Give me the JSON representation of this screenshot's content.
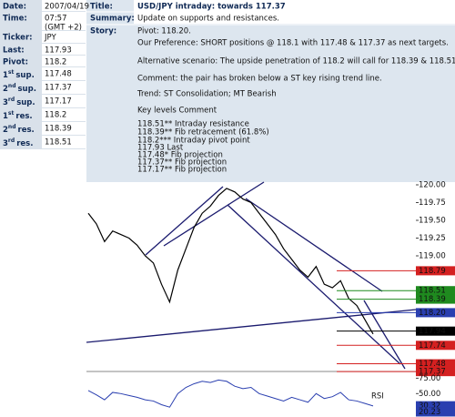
{
  "sidebar": {
    "rows": [
      {
        "label": "Date:",
        "value": "2007/04/19"
      },
      {
        "label": "Time:",
        "value": "07:57",
        "value2": "(GMT +2)"
      },
      {
        "label": "Ticker:",
        "value": "JPY"
      },
      {
        "label": "Last:",
        "value": "117.93"
      },
      {
        "label": "Pivot:",
        "value": "118.2"
      },
      {
        "num": "1",
        "sup": "st",
        "label": "sup.",
        "value": "117.48"
      },
      {
        "num": "2",
        "sup": "nd",
        "label": "sup.",
        "value": "117.37"
      },
      {
        "num": "3",
        "sup": "rd",
        "label": "sup.",
        "value": "117.17"
      },
      {
        "num": "1",
        "sup": "st",
        "label": "res.",
        "value": "118.2"
      },
      {
        "num": "2",
        "sup": "nd",
        "label": "res.",
        "value": "118.39"
      },
      {
        "num": "3",
        "sup": "rd",
        "label": "res.",
        "value": "118.51"
      }
    ]
  },
  "header": {
    "title_label": "Title:",
    "title": "USD/JPY intraday: towards 117.37",
    "summary_label": "Summary:",
    "summary": "Update on supports and resistances.",
    "story_label": "Story:",
    "story": [
      "Pivot: 118.20.",
      "Our Preference: SHORT positions @ 118.1 with 117.48 & 117.37 as next targets.",
      "Alternative scenario: The upside penetration of 118.2 will call for 118.39 & 118.51.",
      "Comment: the pair has broken below a ST key rising trend line.",
      "Trend: ST Consolidation; MT Bearish",
      "Key levels Comment",
      "118.51** Intraday resistance",
      "118.39** Fib retracement (61.8%)",
      "118.2*** Intraday pivot point",
      "117.93 Last",
      "117.48* Fib projection",
      "117.37** Fib projection",
      "117.17** Fib projection"
    ]
  },
  "chart_data": {
    "type": "line",
    "values": [
      119.6,
      119.45,
      119.2,
      119.35,
      119.3,
      119.25,
      119.15,
      119.0,
      118.9,
      118.6,
      118.35,
      118.8,
      119.1,
      119.4,
      119.6,
      119.7,
      119.85,
      119.95,
      119.9,
      119.8,
      119.75,
      119.6,
      119.45,
      119.3,
      119.1,
      118.95,
      118.8,
      118.7,
      118.85,
      118.6,
      118.55,
      118.65,
      118.4,
      118.3,
      118.1,
      117.9
    ],
    "color": "#000000",
    "ylim": [
      117.0,
      120.2
    ],
    "yticks": [
      {
        "value": 120,
        "label": "120.00"
      },
      {
        "value": 119.75,
        "label": "119.75"
      },
      {
        "value": 119.5,
        "label": "119.50"
      },
      {
        "value": 119.25,
        "label": "119.25"
      },
      {
        "value": 119,
        "label": "119.00"
      }
    ],
    "price_tags": [
      {
        "value": 118.79,
        "label": "118.79",
        "color": "#d42020"
      },
      {
        "value": 118.51,
        "label": "118.51",
        "color": "#1f8a1f"
      },
      {
        "value": 118.39,
        "label": "118.39",
        "color": "#1f8a1f"
      },
      {
        "value": 118.2,
        "label": "118.20",
        "color": "#2a3fb0"
      },
      {
        "value": 117.94,
        "label": "117.94",
        "color": "#000000"
      },
      {
        "value": 117.74,
        "label": "117.74",
        "color": "#d42020"
      },
      {
        "value": 117.48,
        "label": "117.48",
        "color": "#d42020"
      },
      {
        "value": 117.37,
        "label": "117.37",
        "color": "#d42020"
      }
    ],
    "rsi": {
      "label": "RSI",
      "values": [
        55,
        48,
        40,
        52,
        50,
        47,
        44,
        40,
        38,
        32,
        28,
        50,
        60,
        66,
        70,
        68,
        72,
        70,
        62,
        58,
        60,
        50,
        46,
        42,
        38,
        44,
        40,
        36,
        50,
        42,
        45,
        52,
        40,
        38,
        34,
        30
      ],
      "color": "#2a3fb0",
      "ylim": [
        15,
        80
      ],
      "yticks": [
        {
          "value": 75,
          "label": "75.00"
        },
        {
          "value": 50,
          "label": "50.00"
        }
      ],
      "tags": [
        {
          "value": 30.32,
          "label": "30.32",
          "color": "#2a3fb0"
        },
        {
          "value": 20.23,
          "label": "20.23",
          "color": "#2a3fb0"
        }
      ]
    }
  }
}
